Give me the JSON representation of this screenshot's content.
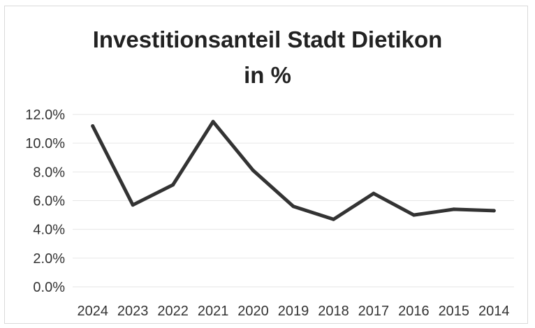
{
  "chart_data": {
    "type": "line",
    "title": "Investitionsanteil Stadt Dietikon",
    "subtitle": "in %",
    "xlabel": "",
    "ylabel": "",
    "categories": [
      "2024",
      "2023",
      "2022",
      "2021",
      "2020",
      "2019",
      "2018",
      "2017",
      "2016",
      "2015",
      "2014"
    ],
    "series": [
      {
        "values": [
          11.2,
          5.7,
          7.1,
          11.5,
          8.1,
          5.6,
          4.7,
          6.5,
          5.0,
          5.4,
          5.3
        ]
      }
    ],
    "ylim": [
      0,
      12
    ],
    "yticks": [
      "0.0%",
      "2.0%",
      "4.0%",
      "6.0%",
      "8.0%",
      "10.0%",
      "12.0%"
    ],
    "grid": true,
    "legend": "none",
    "colors": {
      "line": "#333333",
      "grid": "#e6e6e6"
    }
  }
}
